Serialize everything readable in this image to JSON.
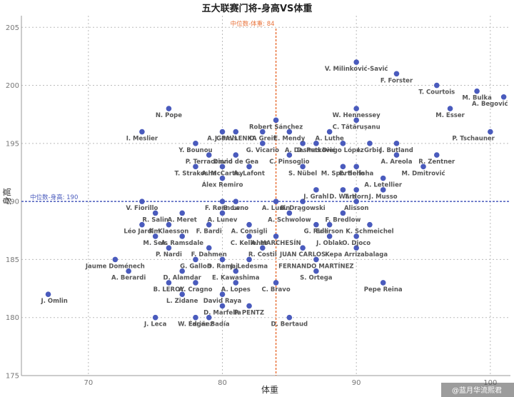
{
  "chart_data": {
    "type": "scatter",
    "title": "五大联赛门将-身高VS体重",
    "xlabel": "体重",
    "ylabel": "身高",
    "xlim": [
      65,
      101.5
    ],
    "ylim": [
      175,
      206
    ],
    "x_ticks": [
      "70",
      "80",
      "90",
      "100"
    ],
    "y_ticks": [
      "175",
      "180",
      "185",
      "190",
      "195",
      "200",
      "205"
    ],
    "grid": true,
    "point_color": "#4a5bbd",
    "reference_lines": {
      "vertical": {
        "label": "中位数-体重: 84",
        "value": 84,
        "color": "#e9733b"
      },
      "horizontal": {
        "label": "中位数-身高: 190",
        "value": 190,
        "color": "#4a5bbd"
      }
    },
    "points": [
      {
        "x": 90,
        "y": 202,
        "label": "V. Milinković-Savić"
      },
      {
        "x": 93,
        "y": 201,
        "label": "F. Forster"
      },
      {
        "x": 96,
        "y": 200,
        "label": "T. Courtois"
      },
      {
        "x": 99,
        "y": 199.5,
        "label": "M. Bulka"
      },
      {
        "x": 101,
        "y": 199,
        "label": "A. Begović"
      },
      {
        "x": 90,
        "y": 198,
        "label": "W. Hennessey"
      },
      {
        "x": 97,
        "y": 198,
        "label": "M. Esser"
      },
      {
        "x": 76,
        "y": 198,
        "label": "N. Pope"
      },
      {
        "x": 84,
        "y": 197,
        "label": "Robert Sánchez"
      },
      {
        "x": 90,
        "y": 197,
        "label": "C. Tătărușanu"
      },
      {
        "x": 83,
        "y": 196,
        "label": "D. Greif"
      },
      {
        "x": 85,
        "y": 196,
        "label": "E. Mendy"
      },
      {
        "x": 88,
        "y": 196,
        "label": "A. Luthe"
      },
      {
        "x": 74,
        "y": 196,
        "label": "I. Meslier"
      },
      {
        "x": 80,
        "y": 196,
        "label": "A. Gomis"
      },
      {
        "x": 81,
        "y": 196,
        "label": "J. PAVLENKA"
      },
      {
        "x": 86,
        "y": 195,
        "label": "A. Desmas"
      },
      {
        "x": 89,
        "y": 195,
        "label": "Diego López"
      },
      {
        "x": 93,
        "y": 195,
        "label": "J. Butland"
      },
      {
        "x": 100,
        "y": 196,
        "label": "P. Tschauner"
      },
      {
        "x": 78,
        "y": 195,
        "label": "Y. Bounou"
      },
      {
        "x": 83,
        "y": 195,
        "label": "G. Vicario"
      },
      {
        "x": 87,
        "y": 195,
        "label": "D. Petković"
      },
      {
        "x": 91,
        "y": 195,
        "label": "I. Grbić"
      },
      {
        "x": 93,
        "y": 194,
        "label": "A. Areola"
      },
      {
        "x": 96,
        "y": 194,
        "label": "R. Zentner"
      },
      {
        "x": 79,
        "y": 194,
        "label": "P. Terracciano"
      },
      {
        "x": 81,
        "y": 194,
        "label": "David de Gea"
      },
      {
        "x": 85,
        "y": 194,
        "label": "C. Pinsoglio"
      },
      {
        "x": 90,
        "y": 193,
        "label": "E. Berisha"
      },
      {
        "x": 95,
        "y": 193,
        "label": "M. Dmitrović"
      },
      {
        "x": 78,
        "y": 193,
        "label": "T. Strakosha"
      },
      {
        "x": 80,
        "y": 193,
        "label": "A. McCarthy"
      },
      {
        "x": 82,
        "y": 193,
        "label": "A. Lafont"
      },
      {
        "x": 86,
        "y": 193,
        "label": "S. Nübel"
      },
      {
        "x": 89,
        "y": 193,
        "label": "M. Sportiello"
      },
      {
        "x": 92,
        "y": 192,
        "label": "A. Letellier"
      },
      {
        "x": 80,
        "y": 192,
        "label": "Álex Remiro"
      },
      {
        "x": 87,
        "y": 191,
        "label": "J. Grahl"
      },
      {
        "x": 89,
        "y": 191,
        "label": "D. Ward"
      },
      {
        "x": 90,
        "y": 191,
        "label": "T. Horn"
      },
      {
        "x": 92,
        "y": 191,
        "label": "J. Musso"
      },
      {
        "x": 74,
        "y": 190,
        "label": "V. Fiorillo"
      },
      {
        "x": 80,
        "y": 190,
        "label": "F. Rønnow"
      },
      {
        "x": 81,
        "y": 190,
        "label": "B. Leno"
      },
      {
        "x": 84,
        "y": 190,
        "label": "A. Lunin"
      },
      {
        "x": 86,
        "y": 190,
        "label": "B. Drągowski"
      },
      {
        "x": 90,
        "y": 190,
        "label": "Alisson"
      },
      {
        "x": 75,
        "y": 189,
        "label": "R. Salin"
      },
      {
        "x": 77,
        "y": 189,
        "label": "A. Meret"
      },
      {
        "x": 80,
        "y": 189,
        "label": "A. Lunev"
      },
      {
        "x": 85,
        "y": 189,
        "label": "A. Schwolow"
      },
      {
        "x": 89,
        "y": 189,
        "label": "F. Bredlow"
      },
      {
        "x": 74,
        "y": 188,
        "label": "Léo Jardim"
      },
      {
        "x": 76,
        "y": 188,
        "label": "K. Klaesson"
      },
      {
        "x": 79,
        "y": 188,
        "label": "F. Bardi"
      },
      {
        "x": 82,
        "y": 188,
        "label": "A. Consigli"
      },
      {
        "x": 87,
        "y": 188,
        "label": "G. Rulli"
      },
      {
        "x": 88,
        "y": 188,
        "label": "Ederson"
      },
      {
        "x": 91,
        "y": 188,
        "label": "K. Schmeichel"
      },
      {
        "x": 75,
        "y": 187,
        "label": "M. Sels"
      },
      {
        "x": 77,
        "y": 187,
        "label": "A. Ramsdale"
      },
      {
        "x": 82,
        "y": 187,
        "label": "C. Kelleher"
      },
      {
        "x": 84,
        "y": 187,
        "label": "A. MARCHESÍN"
      },
      {
        "x": 88,
        "y": 187,
        "label": "J. Oblak"
      },
      {
        "x": 90,
        "y": 187,
        "label": "O. Djoco"
      },
      {
        "x": 76,
        "y": 186,
        "label": "P. Nardi"
      },
      {
        "x": 79,
        "y": 186,
        "label": "F. Dahmen"
      },
      {
        "x": 83,
        "y": 186,
        "label": "R. Costil"
      },
      {
        "x": 86,
        "y": 186,
        "label": "JUAN CARLOS"
      },
      {
        "x": 90,
        "y": 186,
        "label": "Kepa Arrizabalaga"
      },
      {
        "x": 72,
        "y": 185,
        "label": "Jaume Doménech"
      },
      {
        "x": 78,
        "y": 185,
        "label": "G. Gallon"
      },
      {
        "x": 80,
        "y": 185,
        "label": "D. Ramaj"
      },
      {
        "x": 82,
        "y": 185,
        "label": "J. Ledesma"
      },
      {
        "x": 87,
        "y": 185,
        "label": "FERNANDO MARTÍNEZ"
      },
      {
        "x": 73,
        "y": 184,
        "label": "A. Berardi"
      },
      {
        "x": 77,
        "y": 184,
        "label": "D. Alamdar"
      },
      {
        "x": 81,
        "y": 184,
        "label": "E. Kawashima"
      },
      {
        "x": 87,
        "y": 184,
        "label": "S. Ortega"
      },
      {
        "x": 76,
        "y": 183,
        "label": "B. LEROY"
      },
      {
        "x": 78,
        "y": 183,
        "label": "A. Cragno"
      },
      {
        "x": 81,
        "y": 183,
        "label": "A. Lopes"
      },
      {
        "x": 84,
        "y": 183,
        "label": "C. Bravo"
      },
      {
        "x": 92,
        "y": 183,
        "label": "Pepe Reina"
      },
      {
        "x": 77,
        "y": 182,
        "label": "L. Zidane"
      },
      {
        "x": 80,
        "y": 182,
        "label": "David Raya"
      },
      {
        "x": 67,
        "y": 182,
        "label": "J. Omlin"
      },
      {
        "x": 80,
        "y": 181,
        "label": "D. Marfella"
      },
      {
        "x": 82,
        "y": 181,
        "label": "P. PENTZ"
      },
      {
        "x": 78,
        "y": 180,
        "label": "W. Fariñez"
      },
      {
        "x": 75,
        "y": 180,
        "label": "J. Leca"
      },
      {
        "x": 79,
        "y": 180,
        "label": "Édgar Badía"
      },
      {
        "x": 85,
        "y": 180,
        "label": "D. Bertaud"
      }
    ]
  },
  "watermark": "@蓝月华流熙君"
}
